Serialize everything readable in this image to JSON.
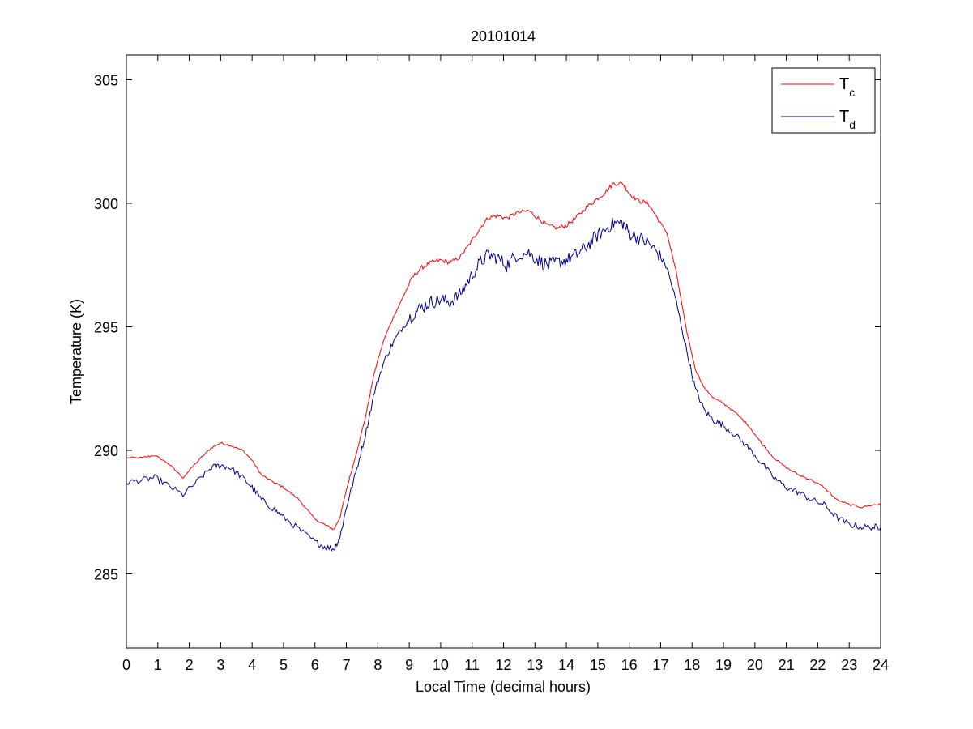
{
  "chart_data": {
    "type": "line",
    "title": "20101014",
    "xlabel": "Local Time (decimal hours)",
    "ylabel": "Temperature (K)",
    "xlim": [
      0,
      24
    ],
    "ylim": [
      282,
      306
    ],
    "xticks": [
      0,
      1,
      2,
      3,
      4,
      5,
      6,
      7,
      8,
      9,
      10,
      11,
      12,
      13,
      14,
      15,
      16,
      17,
      18,
      19,
      20,
      21,
      22,
      23,
      24
    ],
    "yticks": [
      285,
      290,
      295,
      300,
      305
    ],
    "grid": false,
    "legend_position": "top-right",
    "series": [
      {
        "name": "T_c",
        "legend_main": "T",
        "legend_sub": "c",
        "color": "#ff0000",
        "x": [
          0,
          0.5,
          0.9,
          1.3,
          1.8,
          2.3,
          2.7,
          3.0,
          3.3,
          3.7,
          4.0,
          4.3,
          4.7,
          5.0,
          5.5,
          6.0,
          6.3,
          6.6,
          6.8,
          7.0,
          7.3,
          7.6,
          7.9,
          8.2,
          8.5,
          8.8,
          9.1,
          9.4,
          9.7,
          10.0,
          10.3,
          10.6,
          10.9,
          11.2,
          11.5,
          11.8,
          12.1,
          12.4,
          12.8,
          13.1,
          13.4,
          13.7,
          14.0,
          14.3,
          14.6,
          14.9,
          15.2,
          15.5,
          15.8,
          16.0,
          16.3,
          16.6,
          16.9,
          17.2,
          17.5,
          17.8,
          18.1,
          18.4,
          18.7,
          19.0,
          19.4,
          19.8,
          20.2,
          20.6,
          21.0,
          21.4,
          21.8,
          22.2,
          22.6,
          23.0,
          23.4,
          23.8,
          24.0
        ],
        "y": [
          289.7,
          289.7,
          289.8,
          289.5,
          288.9,
          289.6,
          290.1,
          290.3,
          290.2,
          290.0,
          289.6,
          289.0,
          288.7,
          288.5,
          288.0,
          287.2,
          287.0,
          286.8,
          287.3,
          288.4,
          289.8,
          291.3,
          293.2,
          294.5,
          295.4,
          296.2,
          297.0,
          297.4,
          297.6,
          297.7,
          297.6,
          297.8,
          298.3,
          298.9,
          299.4,
          299.5,
          299.4,
          299.6,
          299.7,
          299.4,
          299.1,
          299.0,
          299.1,
          299.4,
          299.8,
          300.1,
          300.4,
          300.8,
          300.8,
          300.4,
          300.1,
          300.0,
          299.4,
          298.8,
          297.2,
          295.0,
          293.3,
          292.5,
          292.1,
          291.9,
          291.5,
          291.0,
          290.3,
          289.7,
          289.3,
          289.0,
          288.8,
          288.5,
          288.0,
          287.8,
          287.7,
          287.8,
          287.8
        ]
      },
      {
        "name": "T_d",
        "legend_main": "T",
        "legend_sub": "d",
        "color": "#00008b",
        "x": [
          0,
          0.5,
          0.9,
          1.3,
          1.8,
          2.3,
          2.7,
          3.0,
          3.3,
          3.7,
          4.0,
          4.3,
          4.7,
          5.0,
          5.5,
          6.0,
          6.3,
          6.6,
          6.8,
          7.0,
          7.3,
          7.6,
          7.9,
          8.2,
          8.5,
          8.8,
          9.1,
          9.4,
          9.7,
          10.0,
          10.3,
          10.6,
          10.9,
          11.2,
          11.5,
          11.8,
          12.1,
          12.4,
          12.8,
          13.1,
          13.4,
          13.7,
          14.0,
          14.3,
          14.6,
          14.9,
          15.2,
          15.5,
          15.8,
          16.0,
          16.3,
          16.6,
          16.9,
          17.2,
          17.5,
          17.8,
          18.1,
          18.4,
          18.7,
          19.0,
          19.4,
          19.8,
          20.2,
          20.6,
          21.0,
          21.4,
          21.8,
          22.2,
          22.6,
          23.0,
          23.4,
          23.8,
          24.0
        ],
        "y": [
          288.7,
          288.8,
          288.9,
          288.6,
          288.2,
          288.8,
          289.3,
          289.4,
          289.3,
          288.9,
          288.5,
          288.0,
          287.6,
          287.3,
          286.8,
          286.3,
          286.1,
          286.0,
          286.5,
          287.7,
          289.1,
          290.6,
          292.4,
          293.6,
          294.4,
          295.0,
          295.5,
          295.8,
          296.0,
          296.1,
          296.0,
          296.3,
          296.9,
          297.5,
          297.9,
          297.8,
          297.5,
          297.9,
          298.0,
          297.7,
          297.5,
          297.6,
          297.7,
          297.9,
          298.2,
          298.6,
          298.9,
          299.2,
          299.2,
          298.8,
          298.6,
          298.4,
          298.0,
          297.4,
          296.0,
          294.2,
          292.5,
          291.6,
          291.2,
          291.0,
          290.6,
          290.1,
          289.5,
          288.9,
          288.5,
          288.3,
          288.0,
          287.8,
          287.3,
          287.0,
          286.9,
          286.9,
          286.9
        ]
      }
    ]
  }
}
